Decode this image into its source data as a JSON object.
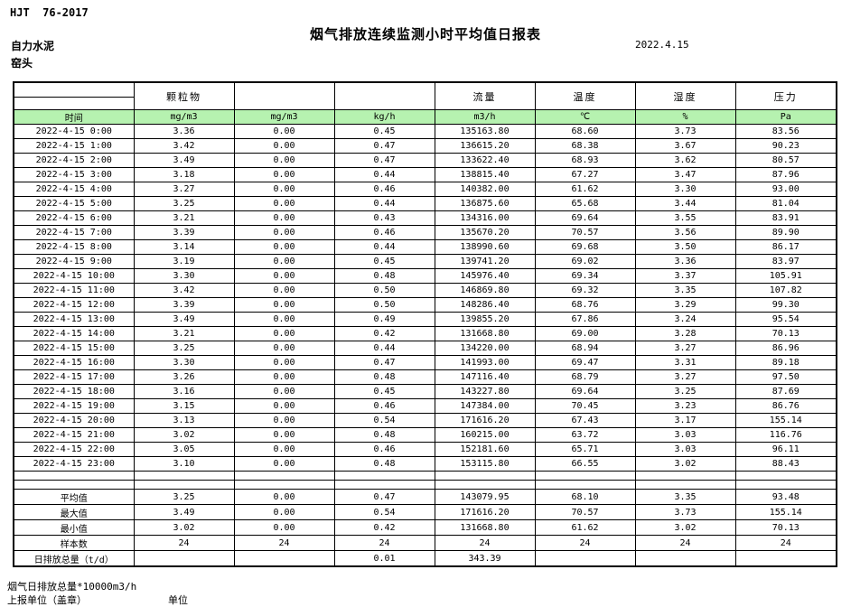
{
  "page": {
    "doc_code": "HJT  76-2017",
    "title": "烟气排放连续监测小时平均值日报表",
    "company": "自力水泥",
    "location": "窑头",
    "date": "2022.4.15"
  },
  "table": {
    "group_headers": [
      "",
      "颗粒物",
      "",
      "",
      "流量",
      "温度",
      "湿度",
      "压力"
    ],
    "unit_headers": [
      "时间",
      "mg/m3",
      "mg/m3",
      "kg/h",
      "m3/h",
      "℃",
      "%",
      "Pa"
    ],
    "rows": [
      [
        "2022-4-15 0:00",
        "3.36",
        "0.00",
        "0.45",
        "135163.80",
        "68.60",
        "3.73",
        "83.56"
      ],
      [
        "2022-4-15 1:00",
        "3.42",
        "0.00",
        "0.47",
        "136615.20",
        "68.38",
        "3.67",
        "90.23"
      ],
      [
        "2022-4-15 2:00",
        "3.49",
        "0.00",
        "0.47",
        "133622.40",
        "68.93",
        "3.62",
        "80.57"
      ],
      [
        "2022-4-15 3:00",
        "3.18",
        "0.00",
        "0.44",
        "138815.40",
        "67.27",
        "3.47",
        "87.96"
      ],
      [
        "2022-4-15 4:00",
        "3.27",
        "0.00",
        "0.46",
        "140382.00",
        "61.62",
        "3.30",
        "93.00"
      ],
      [
        "2022-4-15 5:00",
        "3.25",
        "0.00",
        "0.44",
        "136875.60",
        "65.68",
        "3.44",
        "81.04"
      ],
      [
        "2022-4-15 6:00",
        "3.21",
        "0.00",
        "0.43",
        "134316.00",
        "69.64",
        "3.55",
        "83.91"
      ],
      [
        "2022-4-15 7:00",
        "3.39",
        "0.00",
        "0.46",
        "135670.20",
        "70.57",
        "3.56",
        "89.90"
      ],
      [
        "2022-4-15 8:00",
        "3.14",
        "0.00",
        "0.44",
        "138990.60",
        "69.68",
        "3.50",
        "86.17"
      ],
      [
        "2022-4-15 9:00",
        "3.19",
        "0.00",
        "0.45",
        "139741.20",
        "69.02",
        "3.36",
        "83.97"
      ],
      [
        "2022-4-15 10:00",
        "3.30",
        "0.00",
        "0.48",
        "145976.40",
        "69.34",
        "3.37",
        "105.91"
      ],
      [
        "2022-4-15 11:00",
        "3.42",
        "0.00",
        "0.50",
        "146869.80",
        "69.32",
        "3.35",
        "107.82"
      ],
      [
        "2022-4-15 12:00",
        "3.39",
        "0.00",
        "0.50",
        "148286.40",
        "68.76",
        "3.29",
        "99.30"
      ],
      [
        "2022-4-15 13:00",
        "3.49",
        "0.00",
        "0.49",
        "139855.20",
        "67.86",
        "3.24",
        "95.54"
      ],
      [
        "2022-4-15 14:00",
        "3.21",
        "0.00",
        "0.42",
        "131668.80",
        "69.00",
        "3.28",
        "70.13"
      ],
      [
        "2022-4-15 15:00",
        "3.25",
        "0.00",
        "0.44",
        "134220.00",
        "68.94",
        "3.27",
        "86.96"
      ],
      [
        "2022-4-15 16:00",
        "3.30",
        "0.00",
        "0.47",
        "141993.00",
        "69.47",
        "3.31",
        "89.18"
      ],
      [
        "2022-4-15 17:00",
        "3.26",
        "0.00",
        "0.48",
        "147116.40",
        "68.79",
        "3.27",
        "97.50"
      ],
      [
        "2022-4-15 18:00",
        "3.16",
        "0.00",
        "0.45",
        "143227.80",
        "69.64",
        "3.25",
        "87.69"
      ],
      [
        "2022-4-15 19:00",
        "3.15",
        "0.00",
        "0.46",
        "147384.00",
        "70.45",
        "3.23",
        "86.76"
      ],
      [
        "2022-4-15 20:00",
        "3.13",
        "0.00",
        "0.54",
        "171616.20",
        "67.43",
        "3.17",
        "155.14"
      ],
      [
        "2022-4-15 21:00",
        "3.02",
        "0.00",
        "0.48",
        "160215.00",
        "63.72",
        "3.03",
        "116.76"
      ],
      [
        "2022-4-15 22:00",
        "3.05",
        "0.00",
        "0.46",
        "152181.60",
        "65.71",
        "3.03",
        "96.11"
      ],
      [
        "2022-4-15 23:00",
        "3.10",
        "0.00",
        "0.48",
        "153115.80",
        "66.55",
        "3.02",
        "88.43"
      ]
    ],
    "blank_rows": 2,
    "summary": [
      [
        "平均值",
        "3.25",
        "0.00",
        "0.47",
        "143079.95",
        "68.10",
        "3.35",
        "93.48"
      ],
      [
        "最大值",
        "3.49",
        "0.00",
        "0.54",
        "171616.20",
        "70.57",
        "3.73",
        "155.14"
      ],
      [
        "最小值",
        "3.02",
        "0.00",
        "0.42",
        "131668.80",
        "61.62",
        "3.02",
        "70.13"
      ],
      [
        "样本数",
        "24",
        "24",
        "24",
        "24",
        "24",
        "24",
        "24"
      ],
      [
        "日排放总量（t/d）",
        "",
        "",
        "0.01",
        "343.39",
        "",
        "",
        ""
      ]
    ]
  },
  "footer": {
    "note": "烟气日排放总量*10000m3/h",
    "report_unit_label": "上报单位（盖章）",
    "unit_label": "单位"
  },
  "colors": {
    "header_green": "#b6f2b0"
  }
}
